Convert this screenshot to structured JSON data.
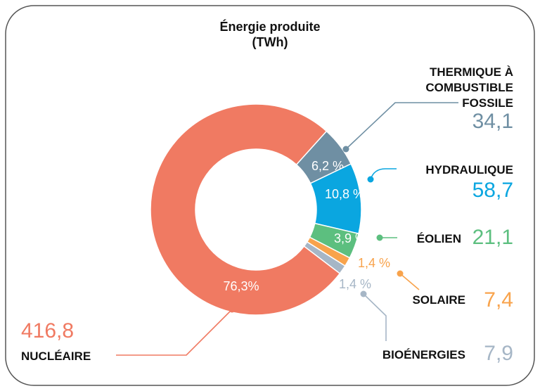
{
  "chart_data": {
    "type": "pie",
    "donut": true,
    "title": "Énergie produite",
    "subtitle": "(TWh)",
    "slices": [
      {
        "key": "fossile",
        "name": "THERMIQUE À COMBUSTIBLE FOSSILE",
        "name_lines": [
          "THERMIQUE À",
          "COMBUSTIBLE",
          "FOSSILE"
        ],
        "value": "34,1",
        "percent": 6.2,
        "percent_label": "6,2 %",
        "color": "#6f8fa3"
      },
      {
        "key": "hydro",
        "name": "HYDRAULIQUE",
        "name_lines": [
          "HYDRAULIQUE"
        ],
        "value": "58,7",
        "percent": 10.8,
        "percent_label": "10,8 %",
        "color": "#0aa6e0"
      },
      {
        "key": "eolien",
        "name": "ÉOLIEN",
        "name_lines": [
          "ÉOLIEN"
        ],
        "value": "21,1",
        "percent": 3.9,
        "percent_label": "3,9 %",
        "color": "#5cbf7f"
      },
      {
        "key": "solaire",
        "name": "SOLAIRE",
        "name_lines": [
          "SOLAIRE"
        ],
        "value": "7,4",
        "percent": 1.4,
        "percent_label": "1,4 %",
        "color": "#f8a34c"
      },
      {
        "key": "bio",
        "name": "BIOÉNERGIES",
        "name_lines": [
          "BIOÉNERGIES"
        ],
        "value": "7,9",
        "percent": 1.4,
        "percent_label": "1,4 %",
        "color": "#a6b6c6"
      },
      {
        "key": "nucleaire",
        "name": "NUCLÉAIRE",
        "name_lines": [
          "NUCLÉAIRE"
        ],
        "value": "416,8",
        "percent": 76.3,
        "percent_label": "76,3%",
        "color": "#f07a62"
      }
    ]
  }
}
